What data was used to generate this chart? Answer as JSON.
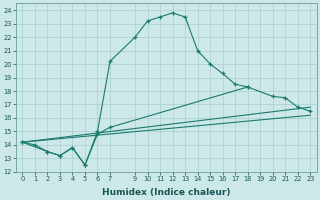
{
  "xlabel": "Humidex (Indice chaleur)",
  "background_color": "#cce8e8",
  "grid_color": "#aacece",
  "line_color": "#1a7a6e",
  "xlim": [
    -0.5,
    23.5
  ],
  "ylim": [
    12,
    24.5
  ],
  "xticks": [
    0,
    1,
    2,
    3,
    4,
    5,
    6,
    7,
    9,
    10,
    11,
    12,
    13,
    14,
    15,
    16,
    17,
    18,
    19,
    20,
    21,
    22,
    23
  ],
  "yticks": [
    12,
    13,
    14,
    15,
    16,
    17,
    18,
    19,
    20,
    21,
    22,
    23,
    24
  ],
  "series": [
    {
      "x": [
        0,
        1,
        2,
        3,
        4,
        5,
        6,
        7,
        9,
        10,
        11,
        12,
        13,
        14,
        15,
        16,
        17,
        18
      ],
      "y": [
        14.2,
        14.0,
        13.5,
        13.2,
        13.8,
        12.5,
        15.0,
        20.2,
        22.0,
        23.2,
        23.5,
        23.8,
        23.5,
        21.0,
        20.0,
        19.3,
        18.5,
        18.3
      ],
      "marker": true
    },
    {
      "x": [
        0,
        2,
        3,
        4,
        5,
        6,
        7,
        18,
        20,
        21,
        22,
        23
      ],
      "y": [
        14.2,
        13.5,
        13.2,
        13.8,
        12.5,
        14.8,
        15.3,
        18.3,
        17.6,
        17.5,
        16.8,
        16.5
      ],
      "marker": true
    },
    {
      "x": [
        0,
        23
      ],
      "y": [
        14.2,
        16.8
      ],
      "marker": false
    },
    {
      "x": [
        0,
        23
      ],
      "y": [
        14.2,
        16.2
      ],
      "marker": false
    }
  ]
}
